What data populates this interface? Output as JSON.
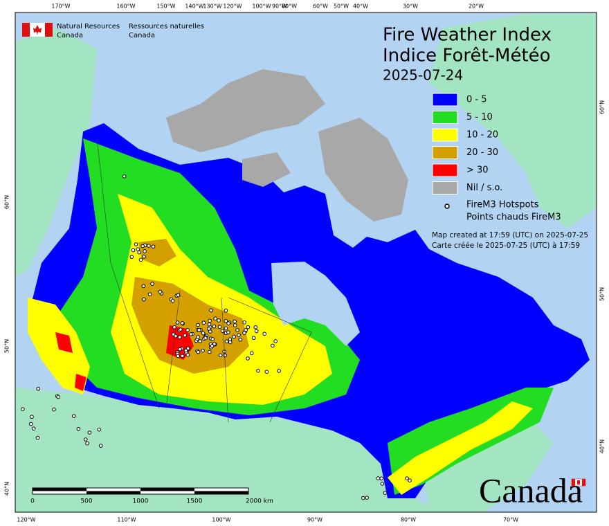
{
  "header": {
    "agency_en": [
      "Natural Resources",
      "Canada"
    ],
    "agency_fr": [
      "Ressources naturelles",
      "Canada"
    ]
  },
  "title": [
    "Fire Weather Index",
    "Indice Forêt-Météo"
  ],
  "date": "2025-07-24",
  "legend": {
    "items": [
      {
        "label": "0 - 5",
        "color": "#0000ff"
      },
      {
        "label": "5 - 10",
        "color": "#22dd22"
      },
      {
        "label": "10 - 20",
        "color": "#ffff00"
      },
      {
        "label": "20 - 30",
        "color": "#d4a000"
      },
      {
        "label": "> 30",
        "color": "#ff0000"
      },
      {
        "label": "Nil / s.o.",
        "color": "#a8a8a8"
      }
    ],
    "hotspots": [
      "FireM3 Hotspots",
      "Points chauds FireM3"
    ]
  },
  "credit": [
    "Map created at 17:59 (UTC) on 2025-07-25",
    "Carte créée le 2025-07-25 (UTC) à 17:59"
  ],
  "scale_bar": [
    "0",
    "500",
    "1000",
    "1500",
    "2000 km"
  ],
  "graticule": {
    "top": [
      "170°W",
      "160°W",
      "150°W",
      "140°W",
      "130°W",
      "120°W",
      "100°W",
      "90°W",
      "80°W",
      "60°W",
      "50°W",
      "40°W",
      "30°W",
      "20°W"
    ],
    "bottom": [
      "120°W",
      "110°W",
      "100°W",
      "90°W",
      "80°W",
      "70°W"
    ],
    "left": [
      "60°N",
      "50°N",
      "40°N"
    ],
    "right": [
      "60°N",
      "50°N",
      "40°N"
    ]
  },
  "wordmark": "Canada"
}
